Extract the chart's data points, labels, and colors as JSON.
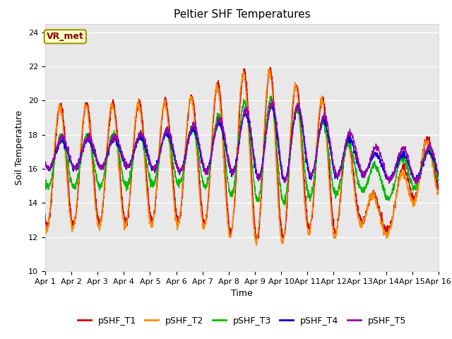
{
  "title": "Peltier SHF Temperatures",
  "xlabel": "Time",
  "ylabel": "Soil Temperature",
  "ylim": [
    10,
    24.5
  ],
  "yticks": [
    10,
    12,
    14,
    16,
    18,
    20,
    22,
    24
  ],
  "xlim": [
    0,
    15
  ],
  "xtick_labels": [
    "Apr 1",
    "Apr 2",
    "Apr 3",
    "Apr 4",
    "Apr 5",
    "Apr 6",
    "Apr 7",
    "Apr 8",
    "Apr 9",
    "Apr 10",
    "Apr 11",
    "Apr 12",
    "Apr 13",
    "Apr 14",
    "Apr 15",
    "Apr 16"
  ],
  "series_colors": [
    "#cc0000",
    "#ff8800",
    "#00bb00",
    "#0000cc",
    "#9900aa"
  ],
  "series_names": [
    "pSHF_T1",
    "pSHF_T2",
    "pSHF_T3",
    "pSHF_T4",
    "pSHF_T5"
  ],
  "annotation_text": "VR_met",
  "bg_color": "#e8e8e8",
  "fig_bg": "#ffffff",
  "linewidth": 1.0,
  "title_fontsize": 11,
  "axis_label_fontsize": 9,
  "tick_fontsize": 8,
  "legend_fontsize": 9
}
